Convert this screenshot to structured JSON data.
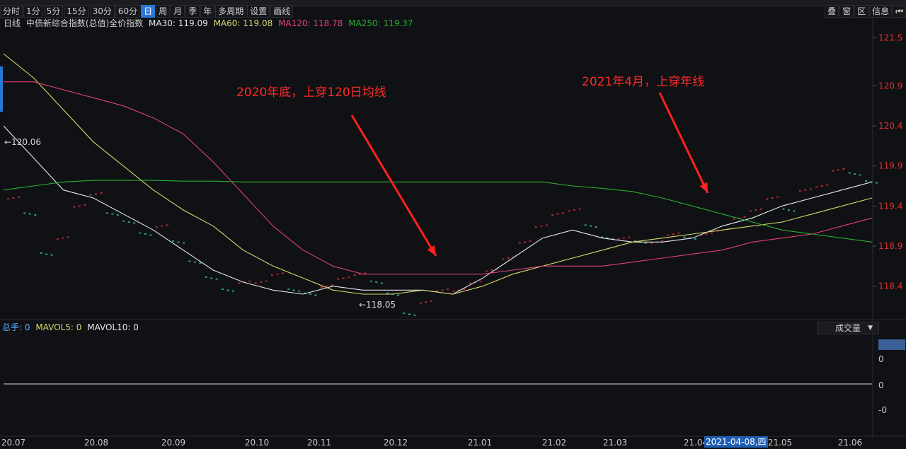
{
  "toolbar": {
    "periods": [
      "分时",
      "1分",
      "5分",
      "15分",
      "30分",
      "60分",
      "日",
      "周",
      "月",
      "季",
      "年",
      "多周期",
      "设置",
      "画线"
    ],
    "active_period": "日",
    "right_items": [
      "叠",
      "窗",
      "区",
      "信息",
      "⏮"
    ]
  },
  "legend": {
    "period": "日线",
    "name": "中债新综合指数(总值)全价指数",
    "ma30": "MA30: 119.09",
    "ma60": "MA60: 119.08",
    "ma120": "MA120: 118.78",
    "ma250": "MA250: 119.37",
    "colors": {
      "ma30": "#e8e8e8",
      "ma60": "#d9d96a",
      "ma120": "#e0407a",
      "ma250": "#28b030",
      "label": "#d0d0d0"
    }
  },
  "annotations": {
    "a1": "2020年底，上穿120日均线",
    "a2": "2021年4月，上穿年线"
  },
  "markers": {
    "high": "120.06",
    "low": "118.05"
  },
  "volume": {
    "label": "总手:",
    "total": "0",
    "mavol5": "MAVOL5: 0",
    "mavol10": "MAVOL10: 0",
    "select": "成交量",
    "yticks": [
      "0",
      "0",
      "0",
      "-0"
    ]
  },
  "date_tag": "2021-04-08,四",
  "chart_data": {
    "type": "line",
    "xticks": [
      "20.07",
      "20.08",
      "20.09",
      "20.10",
      "20.11",
      "20.12",
      "21.01",
      "21.02",
      "21.03",
      "21.04",
      "21.05",
      "21.06"
    ],
    "yticks": [
      121.5,
      120.9,
      120.4,
      119.9,
      119.4,
      118.9,
      118.4
    ],
    "ylim": [
      118.0,
      121.6
    ],
    "series": [
      {
        "name": "MA30",
        "color": "#e8e8e8",
        "values": [
          120.4,
          120.0,
          119.6,
          119.5,
          119.3,
          119.1,
          118.85,
          118.6,
          118.45,
          118.35,
          118.3,
          118.4,
          118.35,
          118.35,
          118.35,
          118.3,
          118.5,
          118.75,
          119.0,
          119.1,
          119.0,
          118.95,
          118.95,
          119.0,
          119.15,
          119.25,
          119.4,
          119.5,
          119.6,
          119.7
        ]
      },
      {
        "name": "MA60",
        "color": "#d9d96a",
        "values": [
          121.3,
          121.0,
          120.6,
          120.2,
          119.9,
          119.6,
          119.35,
          119.15,
          118.85,
          118.65,
          118.5,
          118.35,
          118.3,
          118.3,
          118.35,
          118.3,
          118.4,
          118.55,
          118.65,
          118.75,
          118.85,
          118.95,
          119.0,
          119.05,
          119.1,
          119.15,
          119.2,
          119.3,
          119.4,
          119.5
        ]
      },
      {
        "name": "MA120",
        "color": "#e0407a",
        "values": [
          120.95,
          120.95,
          120.85,
          120.75,
          120.65,
          120.5,
          120.3,
          119.95,
          119.55,
          119.15,
          118.85,
          118.65,
          118.55,
          118.55,
          118.55,
          118.55,
          118.55,
          118.6,
          118.65,
          118.65,
          118.65,
          118.7,
          118.75,
          118.8,
          118.85,
          118.95,
          119.0,
          119.05,
          119.15,
          119.25
        ]
      },
      {
        "name": "MA250",
        "color": "#28b030",
        "values": [
          119.6,
          119.65,
          119.7,
          119.72,
          119.72,
          119.72,
          119.71,
          119.71,
          119.7,
          119.7,
          119.7,
          119.7,
          119.7,
          119.7,
          119.7,
          119.7,
          119.7,
          119.7,
          119.7,
          119.65,
          119.62,
          119.58,
          119.5,
          119.4,
          119.3,
          119.2,
          119.1,
          119.05,
          119.0,
          118.95
        ]
      }
    ],
    "candles": [
      119.5,
      119.3,
      118.8,
      119.0,
      119.4,
      119.55,
      119.3,
      119.2,
      119.05,
      119.15,
      118.95,
      118.7,
      118.5,
      118.35,
      118.45,
      118.45,
      118.55,
      118.35,
      118.3,
      118.4,
      118.5,
      118.55,
      118.45,
      118.3,
      118.05,
      118.2,
      118.35,
      118.35,
      118.45,
      118.6,
      118.75,
      118.95,
      119.15,
      119.3,
      119.35,
      119.15,
      119.0,
      119.0,
      118.95,
      118.95,
      119.05,
      119.0,
      119.05,
      119.1,
      119.25,
      119.35,
      119.5,
      119.35,
      119.6,
      119.65,
      119.85,
      119.8,
      119.7
    ],
    "candle_colors": [
      "#30c8c8",
      "#e03040"
    ]
  }
}
